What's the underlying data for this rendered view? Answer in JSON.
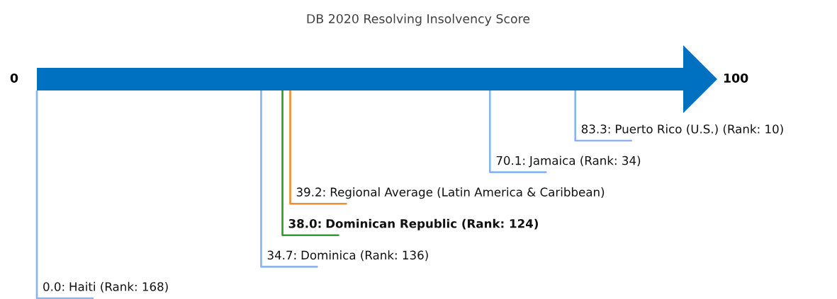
{
  "chart_data": {
    "type": "other",
    "title": "DB 2020 Resolving Insolvency Score",
    "annotations": [
      "0",
      "100"
    ],
    "color": "#0070c0",
    "categories": [
      "Puerto Rico (U.S.) (Rank: 10)",
      "Jamaica (Rank: 34)",
      "Regional Average (Latin America & Caribbean)",
      "Dominican Republic (Rank: 124)",
      "Dominica (Rank: 136)",
      "Haiti (Rank: 168)"
    ],
    "series": [
      {
        "color": "#8ab4f0",
        "values": [
          83.3,
          70.1,
          null,
          null,
          34.7,
          0.0
        ],
        "value_labels": [
          "83.3:",
          "70.1:",
          null,
          null,
          "34.7:",
          "0.0:"
        ]
      },
      {
        "color": "#f28e2b",
        "values": [
          null,
          null,
          39.2,
          null,
          null,
          null
        ],
        "value_labels": [
          null,
          null,
          "39.2:",
          null,
          null,
          null
        ]
      },
      {
        "color": "#2ca02c",
        "values": [
          null,
          null,
          null,
          38.0,
          null,
          null
        ],
        "value_labels": [
          null,
          null,
          null,
          "38.0:",
          null,
          null
        ]
      }
    ]
  }
}
